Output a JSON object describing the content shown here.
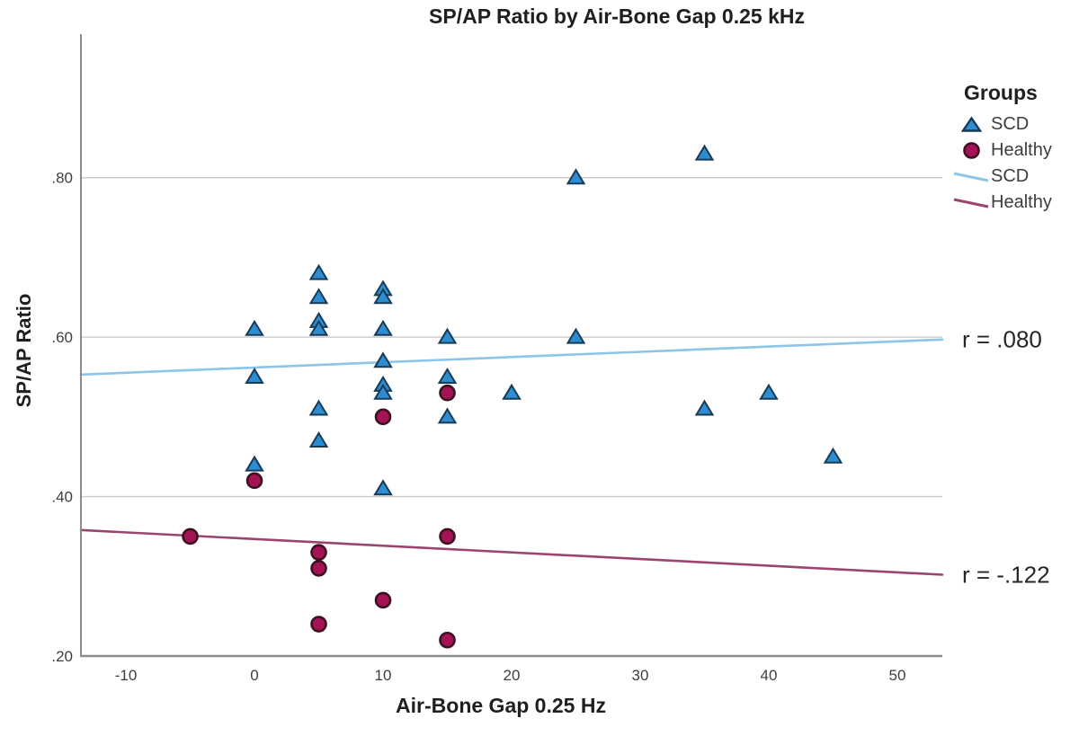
{
  "title": "SP/AP Ratio by Air-Bone Gap 0.25 kHz",
  "legend": {
    "title": "Groups",
    "items": [
      {
        "label": "SCD",
        "marker": "triangle"
      },
      {
        "label": "Healthy",
        "marker": "circle"
      },
      {
        "label": "SCD",
        "marker": "line"
      },
      {
        "label": "Healthy",
        "marker": "line"
      }
    ]
  },
  "chart_data": {
    "type": "scatter",
    "title": "SP/AP Ratio by Air-Bone Gap 0.25 kHz",
    "xlabel": "Air-Bone Gap 0.25 Hz",
    "ylabel": "SP/AP Ratio",
    "xlim": [
      -13.5,
      53.5
    ],
    "ylim": [
      0.2,
      0.98
    ],
    "x_ticks": [
      {
        "value": -10,
        "label": "-10"
      },
      {
        "value": 0,
        "label": "0"
      },
      {
        "value": 10,
        "label": "10"
      },
      {
        "value": 20,
        "label": "20"
      },
      {
        "value": 30,
        "label": "30"
      },
      {
        "value": 40,
        "label": "40"
      },
      {
        "value": 50,
        "label": "50"
      }
    ],
    "y_ticks": [
      {
        "value": 0.2,
        "label": ".20"
      },
      {
        "value": 0.4,
        "label": ".40"
      },
      {
        "value": 0.6,
        "label": ".60"
      },
      {
        "value": 0.8,
        "label": ".80"
      }
    ],
    "y_gridlines": [
      0.4,
      0.6,
      0.8
    ],
    "grid_on": true,
    "legend_position": "right",
    "series": [
      {
        "name": "SCD",
        "marker": "triangle",
        "color": "#2e8cd0",
        "edge_color": "#173a56",
        "points": [
          [
            0,
            0.61
          ],
          [
            0,
            0.55
          ],
          [
            0,
            0.44
          ],
          [
            5,
            0.68
          ],
          [
            5,
            0.65
          ],
          [
            5,
            0.62
          ],
          [
            5,
            0.61
          ],
          [
            5,
            0.51
          ],
          [
            5,
            0.47
          ],
          [
            10,
            0.66
          ],
          [
            10,
            0.65
          ],
          [
            10,
            0.61
          ],
          [
            10,
            0.57
          ],
          [
            10,
            0.54
          ],
          [
            10,
            0.53
          ],
          [
            10,
            0.41
          ],
          [
            15,
            0.6
          ],
          [
            15,
            0.55
          ],
          [
            15,
            0.5
          ],
          [
            20,
            0.53
          ],
          [
            25,
            0.8
          ],
          [
            25,
            0.6
          ],
          [
            35,
            0.83
          ],
          [
            35,
            0.51
          ],
          [
            40,
            0.53
          ],
          [
            45,
            0.45
          ]
        ]
      },
      {
        "name": "Healthy",
        "marker": "circle",
        "color": "#a31355",
        "edge_color": "#3c1220",
        "points": [
          [
            -5,
            0.35
          ],
          [
            0,
            0.42
          ],
          [
            5,
            0.33
          ],
          [
            5,
            0.31
          ],
          [
            5,
            0.24
          ],
          [
            10,
            0.5
          ],
          [
            10,
            0.27
          ],
          [
            15,
            0.53
          ],
          [
            15,
            0.35
          ],
          [
            15,
            0.22
          ]
        ]
      }
    ],
    "fit_lines": [
      {
        "name": "SCD",
        "color": "#8bc6e9",
        "x1": -13.5,
        "y1": 0.553,
        "x2": 53.5,
        "y2": 0.597,
        "r_label": "r = .080"
      },
      {
        "name": "Healthy",
        "color": "#9c4470",
        "x1": -13.5,
        "y1": 0.358,
        "x2": 53.5,
        "y2": 0.302,
        "r_label": "r = -.122"
      }
    ],
    "grid_color": "#cccccc",
    "axis_color": "#8c8c8c"
  }
}
